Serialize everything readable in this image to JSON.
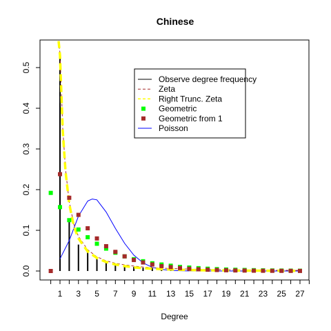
{
  "chart_data": {
    "type": "bar",
    "title": "Chinese",
    "xlabel": "Degree",
    "ylabel": "",
    "xlim": [
      -1,
      28
    ],
    "ylim": [
      -0.01,
      0.565
    ],
    "x_ticks": [
      1,
      3,
      5,
      7,
      9,
      11,
      13,
      15,
      17,
      19,
      21,
      23,
      25,
      27
    ],
    "x_tick_labels": [
      "1",
      "3",
      "5",
      "7",
      "9",
      "11",
      "13",
      "15",
      "17",
      "19",
      "21",
      "23",
      "25",
      "27"
    ],
    "y_ticks": [
      0.0,
      0.1,
      0.2,
      0.3,
      0.4,
      0.5
    ],
    "y_tick_labels": [
      "0.0",
      "0.1",
      "0.2",
      "0.3",
      "0.4",
      "0.5"
    ],
    "legend_position": "top-right",
    "series": [
      {
        "name": "Observe degree frequency",
        "kind": "bars",
        "color": "#000000",
        "x": [
          1,
          2,
          3,
          4,
          5,
          6,
          7,
          8,
          9,
          10,
          11,
          12,
          13,
          14,
          15,
          16,
          17,
          18,
          19,
          20,
          21,
          22,
          23,
          24,
          25,
          26,
          27
        ],
        "values": [
          0.535,
          0.125,
          0.065,
          0.045,
          0.032,
          0.022,
          0.017,
          0.013,
          0.01,
          0.008,
          0.007,
          0.006,
          0.005,
          0.004,
          0.004,
          0.003,
          0.003,
          0.003,
          0.002,
          0.002,
          0.002,
          0.002,
          0.002,
          0.002,
          0.001,
          0.001,
          0.001
        ]
      },
      {
        "name": "Zeta",
        "kind": "dashed-line",
        "color": "#a52a2a",
        "x": [
          0.85,
          1,
          1.3,
          1.6,
          2,
          2.5,
          3,
          4,
          5,
          6,
          7,
          8,
          9,
          10,
          12,
          14,
          16,
          18,
          20,
          22,
          24,
          26,
          27
        ],
        "values": [
          0.565,
          0.535,
          0.35,
          0.25,
          0.17,
          0.115,
          0.085,
          0.052,
          0.035,
          0.025,
          0.019,
          0.015,
          0.012,
          0.0098,
          0.007,
          0.0052,
          0.004,
          0.0032,
          0.0026,
          0.0022,
          0.0018,
          0.0016,
          0.0015
        ]
      },
      {
        "name": "Right Trunc. Zeta",
        "kind": "dashed-line",
        "color": "#ffff00",
        "x": [
          0.85,
          1,
          1.3,
          1.6,
          2,
          2.5,
          3,
          4,
          5,
          6,
          7,
          8,
          9,
          10,
          12,
          14,
          16,
          18,
          20,
          22,
          24,
          26,
          27
        ],
        "values": [
          0.565,
          0.53,
          0.345,
          0.245,
          0.165,
          0.11,
          0.08,
          0.048,
          0.032,
          0.022,
          0.016,
          0.012,
          0.009,
          0.007,
          0.0045,
          0.003,
          0.002,
          0.0015,
          0.001,
          0.0008,
          0.0006,
          0.0005,
          0.0005
        ]
      },
      {
        "name": "Geometric",
        "kind": "points",
        "color": "#00ff00",
        "x": [
          0,
          1,
          2,
          3,
          4,
          5,
          6,
          7,
          8,
          9,
          10,
          11,
          12,
          13,
          14,
          15,
          16,
          17,
          18,
          19,
          20,
          21,
          22,
          23,
          24,
          25,
          26,
          27
        ],
        "values": [
          0.192,
          0.157,
          0.125,
          0.102,
          0.083,
          0.067,
          0.055,
          0.045,
          0.036,
          0.029,
          0.024,
          0.019,
          0.016,
          0.013,
          0.01,
          0.0085,
          0.007,
          0.0056,
          0.0046,
          0.0037,
          0.003,
          0.0025,
          0.002,
          0.0016,
          0.0013,
          0.0011,
          0.0009,
          0.0007
        ]
      },
      {
        "name": "Geometric from 1",
        "kind": "points",
        "color": "#a52a2a",
        "x": [
          0,
          1,
          2,
          3,
          4,
          5,
          6,
          7,
          8,
          9,
          10,
          11,
          12,
          13,
          14,
          15,
          16,
          17,
          18,
          19,
          20,
          21,
          22,
          23,
          24,
          25,
          26,
          27
        ],
        "values": [
          0.0,
          0.238,
          0.18,
          0.138,
          0.105,
          0.08,
          0.061,
          0.047,
          0.036,
          0.027,
          0.021,
          0.016,
          0.012,
          0.0095,
          0.0072,
          0.0055,
          0.0042,
          0.0032,
          0.0025,
          0.0019,
          0.0014,
          0.0011,
          0.0008,
          0.0006,
          0.0005,
          0.0004,
          0.0003,
          0.0002
        ]
      },
      {
        "name": "Poisson",
        "kind": "line",
        "color": "#0000ff",
        "x": [
          1,
          2,
          3,
          4,
          4.5,
          5,
          6,
          7,
          8,
          9,
          10,
          11,
          12,
          13,
          14,
          15,
          16,
          17,
          18,
          19,
          20,
          21,
          22,
          23,
          24,
          25,
          26,
          27
        ],
        "values": [
          0.03,
          0.075,
          0.135,
          0.172,
          0.177,
          0.175,
          0.145,
          0.105,
          0.068,
          0.039,
          0.02,
          0.009,
          0.004,
          0.0015,
          0.0006,
          0.0002,
          0.0001,
          0,
          0,
          0,
          0,
          0,
          0,
          0,
          0,
          0,
          0,
          0
        ]
      }
    ]
  }
}
